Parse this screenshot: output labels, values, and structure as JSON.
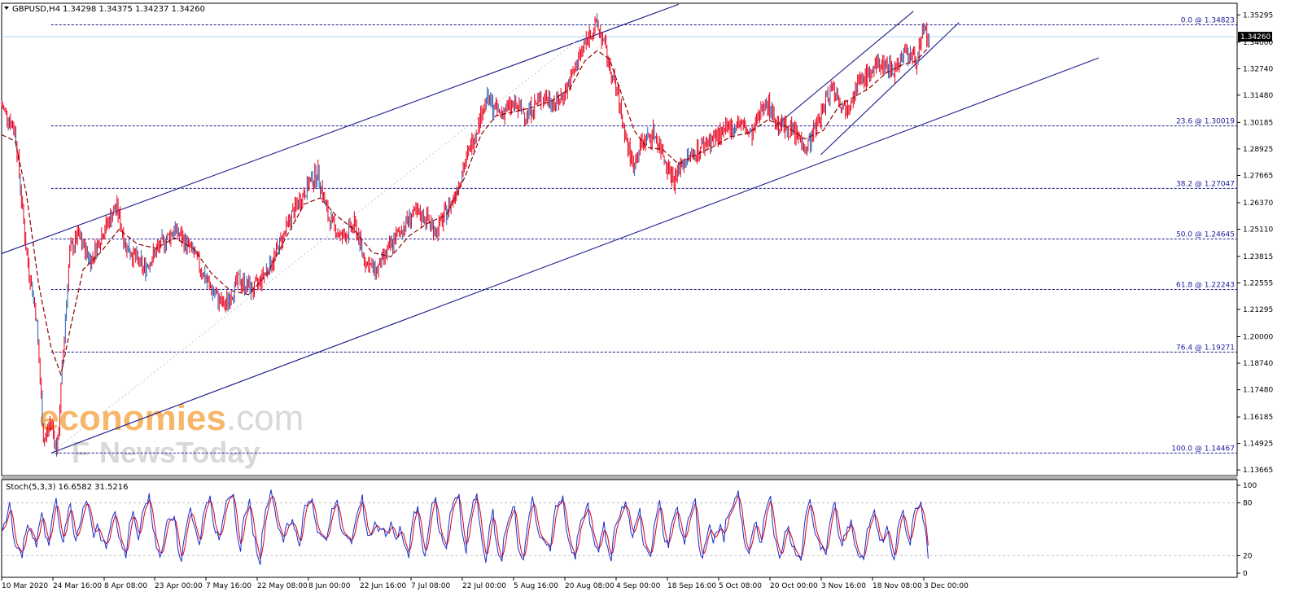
{
  "header": {
    "symbol": "GBPUSD,H4",
    "ohlc": "1.34298 1.34375 1.34237 1.34260",
    "collapse_icon": "triangle-down-icon"
  },
  "watermark": {
    "brand_colored": "economies",
    "brand_suffix": ".com",
    "line2_a": "F",
    "line2_b": "NewsToday"
  },
  "colors": {
    "candle": "#e8001c",
    "candle_alt": "#2a5db0",
    "ma": "#8b0000",
    "channel": "#1a1a8c",
    "fib": "#1a1a8c",
    "stoch_main": "#1a2ecc",
    "stoch_signal": "#d4001a",
    "grid": "#c0c0c0",
    "watermark_orange": "#f39a2a",
    "watermark_gray": "#c8c8c8"
  },
  "chart_data": [
    {
      "type": "candlestick",
      "title": "GBPUSD,H4",
      "current_price": "1.34260",
      "ylim": [
        1.134,
        1.3585
      ],
      "y_ticks": [
        "1.35295",
        "1.34000",
        "1.32740",
        "1.31480",
        "1.30185",
        "1.28925",
        "1.27665",
        "1.26370",
        "1.25110",
        "1.23815",
        "1.22555",
        "1.21295",
        "1.20000",
        "1.18740",
        "1.17480",
        "1.16185",
        "1.14925",
        "1.13665"
      ],
      "x_ticks": [
        "10 Mar 2020",
        "24 Mar 16:00",
        "8 Apr 08:00",
        "23 Apr 00:00",
        "7 May 16:00",
        "22 May 08:00",
        "8 Jun 00:00",
        "22 Jun 16:00",
        "7 Jul 08:00",
        "22 Jul 00:00",
        "5 Aug 16:00",
        "20 Aug 08:00",
        "4 Sep 00:00",
        "18 Sep 16:00",
        "5 Oct 08:00",
        "20 Oct 00:00",
        "3 Nov 16:00",
        "18 Nov 08:00",
        "3 Dec 00:00"
      ],
      "price_path": [
        [
          0,
          1.31
        ],
        [
          0.011,
          1.298
        ],
        [
          0.02,
          1.24
        ],
        [
          0.028,
          1.21
        ],
        [
          0.034,
          1.15
        ],
        [
          0.04,
          1.16
        ],
        [
          0.045,
          1.1447
        ],
        [
          0.05,
          1.195
        ],
        [
          0.055,
          1.24
        ],
        [
          0.062,
          1.248
        ],
        [
          0.072,
          1.236
        ],
        [
          0.082,
          1.25
        ],
        [
          0.093,
          1.262
        ],
        [
          0.1,
          1.244
        ],
        [
          0.115,
          1.232
        ],
        [
          0.128,
          1.243
        ],
        [
          0.14,
          1.251
        ],
        [
          0.155,
          1.24
        ],
        [
          0.168,
          1.224
        ],
        [
          0.18,
          1.214
        ],
        [
          0.192,
          1.227
        ],
        [
          0.204,
          1.222
        ],
        [
          0.22,
          1.237
        ],
        [
          0.235,
          1.258
        ],
        [
          0.25,
          1.274
        ],
        [
          0.256,
          1.278
        ],
        [
          0.264,
          1.257
        ],
        [
          0.275,
          1.247
        ],
        [
          0.286,
          1.253
        ],
        [
          0.294,
          1.236
        ],
        [
          0.303,
          1.231
        ],
        [
          0.31,
          1.238
        ],
        [
          0.32,
          1.248
        ],
        [
          0.332,
          1.258
        ],
        [
          0.343,
          1.257
        ],
        [
          0.352,
          1.25
        ],
        [
          0.365,
          1.265
        ],
        [
          0.38,
          1.291
        ],
        [
          0.392,
          1.313
        ],
        [
          0.403,
          1.306
        ],
        [
          0.413,
          1.31
        ],
        [
          0.425,
          1.306
        ],
        [
          0.438,
          1.314
        ],
        [
          0.45,
          1.311
        ],
        [
          0.46,
          1.321
        ],
        [
          0.468,
          1.334
        ],
        [
          0.476,
          1.344
        ],
        [
          0.482,
          1.3482
        ],
        [
          0.487,
          1.34
        ],
        [
          0.492,
          1.328
        ],
        [
          0.498,
          1.316
        ],
        [
          0.505,
          1.295
        ],
        [
          0.511,
          1.281
        ],
        [
          0.518,
          1.292
        ],
        [
          0.528,
          1.297
        ],
        [
          0.536,
          1.286
        ],
        [
          0.544,
          1.274
        ],
        [
          0.55,
          1.282
        ],
        [
          0.56,
          1.287
        ],
        [
          0.572,
          1.293
        ],
        [
          0.585,
          1.297
        ],
        [
          0.597,
          1.302
        ],
        [
          0.607,
          1.295
        ],
        [
          0.618,
          1.313
        ],
        [
          0.628,
          1.301
        ],
        [
          0.64,
          1.298
        ],
        [
          0.652,
          1.29
        ],
        [
          0.662,
          1.304
        ],
        [
          0.672,
          1.32
        ],
        [
          0.682,
          1.308
        ],
        [
          0.692,
          1.319
        ],
        [
          0.702,
          1.325
        ],
        [
          0.712,
          1.33
        ],
        [
          0.722,
          1.327
        ],
        [
          0.732,
          1.336
        ],
        [
          0.74,
          1.331
        ],
        [
          0.747,
          1.346
        ],
        [
          0.751,
          1.339
        ]
      ],
      "ma_path": [
        [
          0,
          1.296
        ],
        [
          0.011,
          1.293
        ],
        [
          0.02,
          1.268
        ],
        [
          0.03,
          1.225
        ],
        [
          0.04,
          1.195
        ],
        [
          0.048,
          1.182
        ],
        [
          0.056,
          1.205
        ],
        [
          0.066,
          1.232
        ],
        [
          0.08,
          1.24
        ],
        [
          0.095,
          1.251
        ],
        [
          0.11,
          1.244
        ],
        [
          0.125,
          1.242
        ],
        [
          0.14,
          1.247
        ],
        [
          0.155,
          1.242
        ],
        [
          0.17,
          1.23
        ],
        [
          0.185,
          1.222
        ],
        [
          0.2,
          1.22
        ],
        [
          0.215,
          1.23
        ],
        [
          0.23,
          1.247
        ],
        [
          0.245,
          1.263
        ],
        [
          0.258,
          1.266
        ],
        [
          0.27,
          1.258
        ],
        [
          0.285,
          1.251
        ],
        [
          0.3,
          1.24
        ],
        [
          0.315,
          1.238
        ],
        [
          0.33,
          1.248
        ],
        [
          0.345,
          1.254
        ],
        [
          0.36,
          1.258
        ],
        [
          0.375,
          1.276
        ],
        [
          0.388,
          1.296
        ],
        [
          0.4,
          1.305
        ],
        [
          0.415,
          1.307
        ],
        [
          0.43,
          1.309
        ],
        [
          0.445,
          1.312
        ],
        [
          0.46,
          1.318
        ],
        [
          0.472,
          1.331
        ],
        [
          0.482,
          1.336
        ],
        [
          0.492,
          1.332
        ],
        [
          0.502,
          1.315
        ],
        [
          0.512,
          1.298
        ],
        [
          0.522,
          1.29
        ],
        [
          0.535,
          1.289
        ],
        [
          0.548,
          1.282
        ],
        [
          0.56,
          1.286
        ],
        [
          0.575,
          1.29
        ],
        [
          0.59,
          1.295
        ],
        [
          0.605,
          1.297
        ],
        [
          0.62,
          1.303
        ],
        [
          0.635,
          1.3
        ],
        [
          0.65,
          1.294
        ],
        [
          0.665,
          1.298
        ],
        [
          0.678,
          1.31
        ],
        [
          0.69,
          1.314
        ],
        [
          0.702,
          1.318
        ],
        [
          0.715,
          1.325
        ],
        [
          0.728,
          1.329
        ],
        [
          0.74,
          1.331
        ],
        [
          0.751,
          1.338
        ]
      ],
      "fib_levels": [
        {
          "label": "0.0 @ 1.34823",
          "value": 1.34823
        },
        {
          "label": "23.6 @ 1.30019",
          "value": 1.30019
        },
        {
          "label": "38.2 @ 1.27047",
          "value": 1.27047
        },
        {
          "label": "50.0 @ 1.24645",
          "value": 1.24645
        },
        {
          "label": "61.8 @ 1.22243",
          "value": 1.22243
        },
        {
          "label": "76.4 @ 1.19271",
          "value": 1.19271
        },
        {
          "label": "100.0 @ 1.14467",
          "value": 1.14467
        }
      ],
      "trendlines": [
        {
          "from": [
            0,
            1.2395
          ],
          "to": [
            0.548,
            1.358
          ]
        },
        {
          "from": [
            0.04,
            1.1447
          ],
          "to": [
            0.888,
            1.3325
          ]
        },
        {
          "from": [
            0.663,
            1.2865
          ],
          "to": [
            0.775,
            1.3494
          ]
        },
        {
          "from": [
            0.626,
            1.3
          ],
          "to": [
            0.738,
            1.3547
          ]
        }
      ],
      "diagonal_ref": {
        "from": [
          0.04,
          1.1447
        ],
        "to": [
          0.482,
          1.3482
        ]
      }
    },
    {
      "type": "line",
      "title": "Stoch(5,3,3) 16.6582 31.5216",
      "ylim": [
        0,
        100
      ],
      "y_ticks": [
        "100",
        "80",
        "20",
        "0"
      ],
      "levels": [
        80,
        20
      ],
      "series": [
        {
          "name": "16.6582"
        },
        {
          "name": "31.5216"
        }
      ]
    }
  ]
}
